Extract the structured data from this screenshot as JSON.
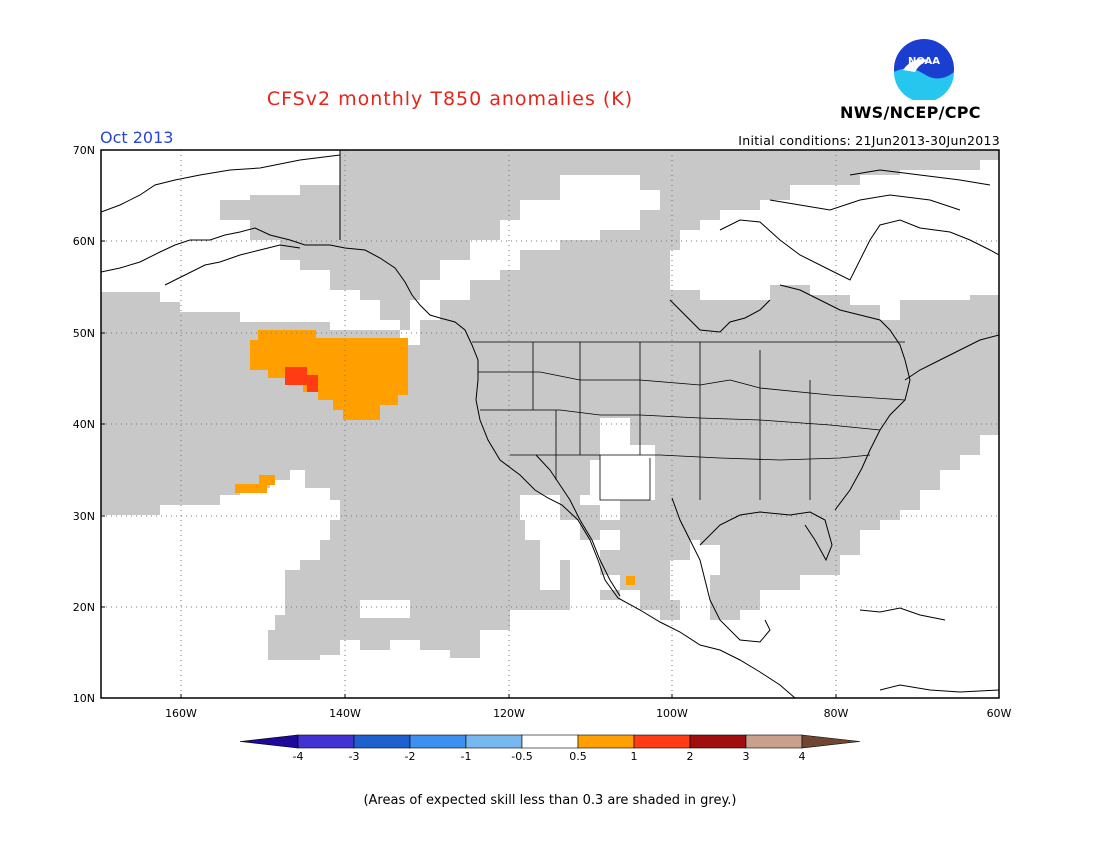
{
  "title": "CFSv2 monthly T850 anomalies (K)",
  "month_label": "Oct 2013",
  "initial_conditions": "Initial conditions: 21Jun2013-30Jun2013",
  "agency": "NWS/NCEP/CPC",
  "logo_text": "NOAA",
  "latitude_labels": [
    "70N",
    "60N",
    "50N",
    "40N",
    "30N",
    "20N",
    "10N"
  ],
  "longitude_labels": [
    "160W",
    "140W",
    "120W",
    "100W",
    "80W",
    "60W"
  ],
  "legend": {
    "colors": [
      "#1e0a9a",
      "#4232d4",
      "#1f60d0",
      "#3d8ff0",
      "#78b8f0",
      "#ffffff",
      "#ffa000",
      "#ff3c14",
      "#a00e0e",
      "#c8a08c",
      "#6e4632"
    ],
    "labels": [
      "-4",
      "-3",
      "-2",
      "-1",
      "-0.5",
      "0.5",
      "1",
      "2",
      "3",
      "4"
    ]
  },
  "footnote": "(Areas of expected skill less than 0.3 are shaded in grey.)",
  "colors": {
    "skill_grey": "#c8c8c8",
    "anom_05_1": "#ffa000",
    "anom_1_2": "#ff3c14",
    "title_red": "#e8231a",
    "month_blue": "#2447d6"
  }
}
